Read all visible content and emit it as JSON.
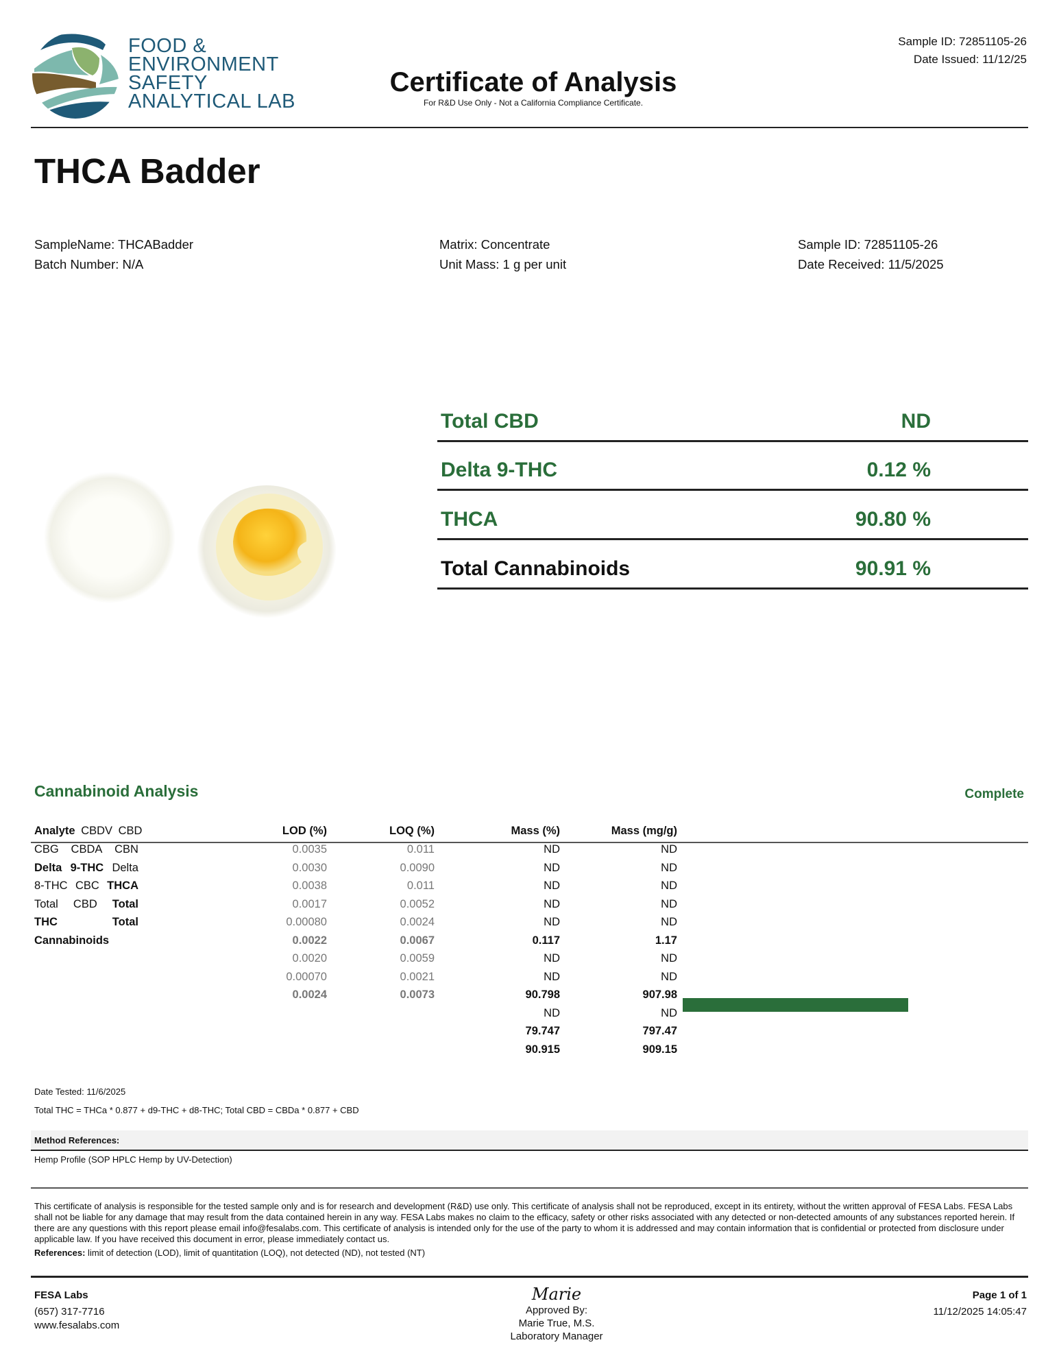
{
  "header": {
    "logo_text": [
      "FOOD &",
      "ENVIRONMENT",
      "SAFETY",
      "ANALYTICAL LAB"
    ],
    "title": "Certificate of Analysis",
    "subtitle": "For R&D Use Only - Not a California Compliance Certificate.",
    "sample_id": "Sample ID: 72851105-26",
    "date_issued": "Date Issued: 11/12/25"
  },
  "product_name": "THCA Badder",
  "info": {
    "sample_name": "SampleName: THCABadder",
    "batch_number": "Batch Number: N/A",
    "matrix": "Matrix: Concentrate",
    "unit_mass": "Unit Mass: 1 g per unit",
    "sample_id": "Sample ID: 72851105-26",
    "date_received": "Date Received: 11/5/2025"
  },
  "summary": [
    {
      "label": "Total CBD",
      "value": "ND"
    },
    {
      "label": "Delta 9-THC",
      "value": "0.12 %"
    },
    {
      "label": "THCA",
      "value": "90.80 %"
    },
    {
      "label": "Total Cannabinoids",
      "value": "90.91 %"
    }
  ],
  "colors": {
    "accent_green": "#2a6e3a",
    "logo_blue": "#1f5a78"
  },
  "analysis": {
    "title": "Cannabinoid Analysis",
    "status": "Complete",
    "columns": {
      "analyte": "Analyte",
      "lod": "LOD (%)",
      "loq": "LOQ (%)",
      "mass_pct": "Mass (%)",
      "mass_mgg": "Mass (mg/g)"
    },
    "analyte_lines": [
      [
        "CBDV",
        "CBD"
      ],
      [
        "CBG",
        "CBDA",
        "CBN"
      ],
      [
        "Delta",
        "9-THC",
        "Delta"
      ],
      [
        "8-THC",
        "CBC",
        "THCA"
      ],
      [
        "Total",
        "CBD",
        "Total"
      ],
      [
        "THC",
        "Total"
      ],
      [
        "Cannabinoids"
      ]
    ],
    "rows": [
      {
        "lod": "0.0035",
        "loq": "0.011",
        "mass_pct": "ND",
        "mass_mgg": "ND",
        "bold": false
      },
      {
        "lod": "0.0030",
        "loq": "0.0090",
        "mass_pct": "ND",
        "mass_mgg": "ND",
        "bold": false
      },
      {
        "lod": "0.0038",
        "loq": "0.011",
        "mass_pct": "ND",
        "mass_mgg": "ND",
        "bold": false
      },
      {
        "lod": "0.0017",
        "loq": "0.0052",
        "mass_pct": "ND",
        "mass_mgg": "ND",
        "bold": false
      },
      {
        "lod": "0.00080",
        "loq": "0.0024",
        "mass_pct": "ND",
        "mass_mgg": "ND",
        "bold": false
      },
      {
        "lod": "0.0022",
        "loq": "0.0067",
        "mass_pct": "0.117",
        "mass_mgg": "1.17",
        "bold": true
      },
      {
        "lod": "0.0020",
        "loq": "0.0059",
        "mass_pct": "ND",
        "mass_mgg": "ND",
        "bold": false
      },
      {
        "lod": "0.00070",
        "loq": "0.0021",
        "mass_pct": "ND",
        "mass_mgg": "ND",
        "bold": false
      },
      {
        "lod": "0.0024",
        "loq": "0.0073",
        "mass_pct": "90.798",
        "mass_mgg": "907.98",
        "bold": true
      },
      {
        "lod": "",
        "loq": "",
        "mass_pct": "ND",
        "mass_mgg": "ND",
        "bold": false
      },
      {
        "lod": "",
        "loq": "",
        "mass_pct": "79.747",
        "mass_mgg": "797.47",
        "bold": true
      },
      {
        "lod": "",
        "loq": "",
        "mass_pct": "90.915",
        "mass_mgg": "909.15",
        "bold": true
      }
    ],
    "thca_bar_pct": 90.798,
    "date_tested": "Date Tested: 11/6/2025",
    "formula": "Total THC = THCa * 0.877 + d9-THC + d8-THC; Total CBD = CBDa * 0.877 + CBD"
  },
  "methods": {
    "title": "Method References:",
    "items": [
      "Hemp Profile (SOP HPLC Hemp by UV-Detection)"
    ]
  },
  "disclaimer": "This certificate of analysis is responsible for the tested sample only and is for research and development (R&D) use only. This certificate of analysis shall not be reproduced, except in its entirety, without the written approval of FESA Labs. FESA Labs shall not be liable for any damage that may result from the data contained herein in any way. FESA Labs makes no claim to the efficacy, safety or other risks associated with any detected or non-detected amounts of any substances reported herein. If there are any questions with this report please email info@fesalabs.com. This certificate of analysis is intended only for the use of the party to whom it is addressed and may contain information that is confidential or protected from disclosure under applicable law. If you have received this document in error, please immediately contact us.",
  "references": {
    "label": "References:",
    "text": " limit of detection (LOD), limit of quantitation (LOQ), not detected (ND), not tested (NT)"
  },
  "footer": {
    "company": "FESA Labs",
    "phone": "(657) 317-7716",
    "website": "www.fesalabs.com",
    "signature": "Marie",
    "approved_by": "Approved By:",
    "approver_name": "Marie True, M.S.",
    "approver_title": "Laboratory Manager",
    "page": "Page 1 of 1",
    "timestamp": "11/12/2025 14:05:47"
  }
}
